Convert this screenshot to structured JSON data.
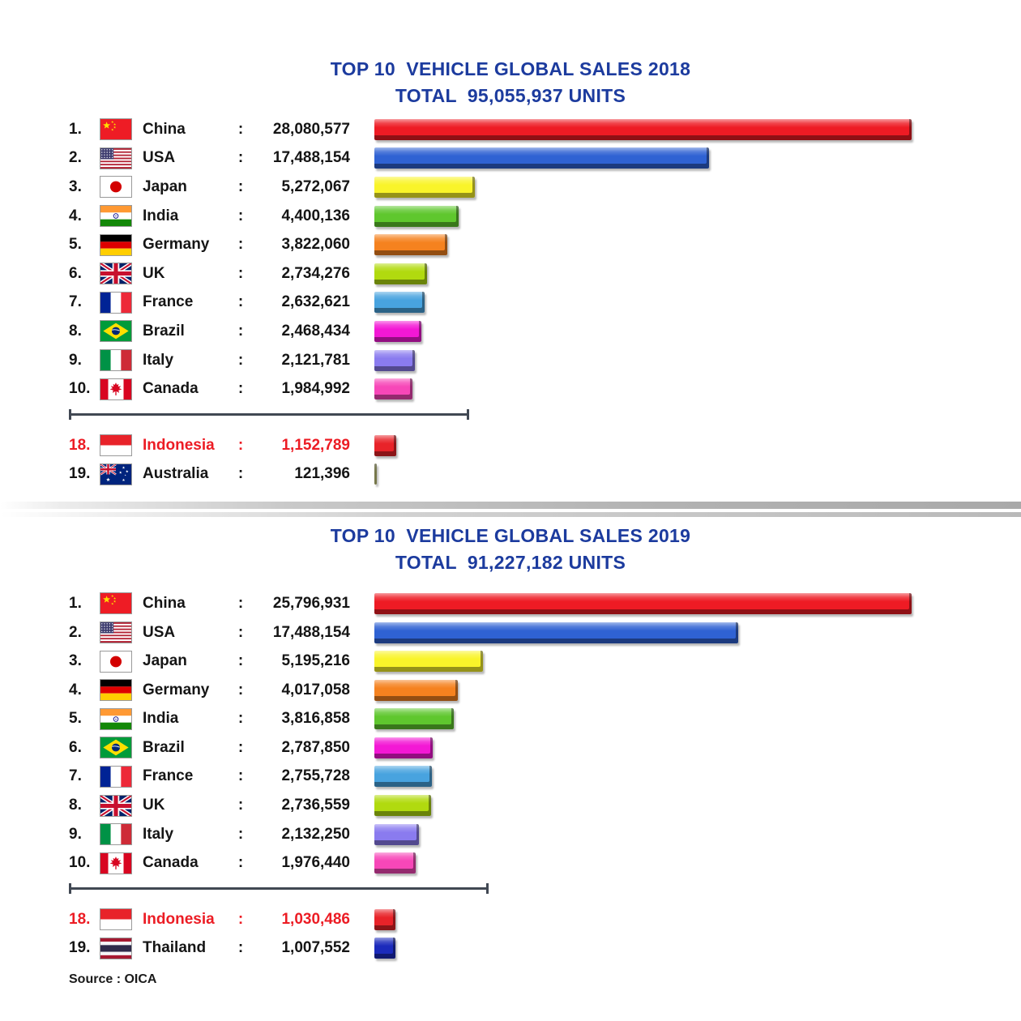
{
  "page": {
    "background": "#ffffff",
    "title_color": "#1C3B9E",
    "text_color": "#151515",
    "highlight_color": "#EC1C24",
    "source_label": "Source : OICA"
  },
  "chart_data": [
    {
      "type": "bar",
      "title": "TOP 10  VEHICLE GLOBAL SALES 2018",
      "subtitle": "TOTAL  95,055,937 UNITS",
      "total_units": 95055937,
      "year": 2018,
      "axis_max": 28080577,
      "legend_position": "none",
      "grid": false,
      "rows": [
        {
          "rank": "1.",
          "country": "China",
          "flag": "china",
          "value": 28080577,
          "value_label": "28,080,577",
          "bar_color": "#EE1B24",
          "highlight": false
        },
        {
          "rank": "2.",
          "country": "USA",
          "flag": "usa",
          "value": 17488154,
          "value_label": "17,488,154",
          "bar_color": "#2F62D3",
          "highlight": false
        },
        {
          "rank": "3.",
          "country": "Japan",
          "flag": "japan",
          "value": 5272067,
          "value_label": "5,272,067",
          "bar_color": "#F9F42A",
          "highlight": false
        },
        {
          "rank": "4.",
          "country": "India",
          "flag": "india",
          "value": 4400136,
          "value_label": "4,400,136",
          "bar_color": "#5FC72E",
          "highlight": false
        },
        {
          "rank": "5.",
          "country": "Germany",
          "flag": "germany",
          "value": 3822060,
          "value_label": "3,822,060",
          "bar_color": "#F5821F",
          "highlight": false
        },
        {
          "rank": "6.",
          "country": "UK",
          "flag": "uk",
          "value": 2734276,
          "value_label": "2,734,276",
          "bar_color": "#B1DA0F",
          "highlight": false
        },
        {
          "rank": "7.",
          "country": "France",
          "flag": "france",
          "value": 2632621,
          "value_label": "2,632,621",
          "bar_color": "#48A3DF",
          "highlight": false
        },
        {
          "rank": "8.",
          "country": "Brazil",
          "flag": "brazil",
          "value": 2468434,
          "value_label": "2,468,434",
          "bar_color": "#F318D5",
          "highlight": false
        },
        {
          "rank": "9.",
          "country": "Italy",
          "flag": "italy",
          "value": 2121781,
          "value_label": "2,121,781",
          "bar_color": "#8A7BEF",
          "highlight": false
        },
        {
          "rank": "10.",
          "country": "Canada",
          "flag": "canada",
          "value": 1984992,
          "value_label": "1,984,992",
          "bar_color": "#F747B8",
          "highlight": false
        }
      ],
      "extra_rows": [
        {
          "rank": "18.",
          "country": "Indonesia",
          "flag": "indonesia",
          "value": 1152789,
          "value_label": "1,152,789",
          "bar_color": "#E82329",
          "highlight": true
        },
        {
          "rank": "19.",
          "country": "Australia",
          "flag": "australia",
          "value": 121396,
          "value_label": "121,396",
          "bar_color": "#C5C77C",
          "highlight": false
        }
      ]
    },
    {
      "type": "bar",
      "title": "TOP 10  VEHICLE GLOBAL SALES 2019",
      "subtitle": "TOTAL  91,227,182 UNITS",
      "total_units": 91227182,
      "year": 2019,
      "axis_max": 25796931,
      "legend_position": "none",
      "grid": false,
      "rows": [
        {
          "rank": "1.",
          "country": "China",
          "flag": "china",
          "value": 25796931,
          "value_label": "25,796,931",
          "bar_color": "#EE1B24",
          "highlight": false
        },
        {
          "rank": "2.",
          "country": "USA",
          "flag": "usa",
          "value": 17488154,
          "value_label": "17,488,154",
          "bar_color": "#2F62D3",
          "highlight": false
        },
        {
          "rank": "3.",
          "country": "Japan",
          "flag": "japan",
          "value": 5195216,
          "value_label": "5,195,216",
          "bar_color": "#F9F42A",
          "highlight": false
        },
        {
          "rank": "4.",
          "country": "Germany",
          "flag": "germany",
          "value": 4017058,
          "value_label": "4,017,058",
          "bar_color": "#F5821F",
          "highlight": false
        },
        {
          "rank": "5.",
          "country": "India",
          "flag": "india",
          "value": 3816858,
          "value_label": "3,816,858",
          "bar_color": "#5FC72E",
          "highlight": false
        },
        {
          "rank": "6.",
          "country": "Brazil",
          "flag": "brazil",
          "value": 2787850,
          "value_label": "2,787,850",
          "bar_color": "#F318D5",
          "highlight": false
        },
        {
          "rank": "7.",
          "country": "France",
          "flag": "france",
          "value": 2755728,
          "value_label": "2,755,728",
          "bar_color": "#48A3DF",
          "highlight": false
        },
        {
          "rank": "8.",
          "country": "UK",
          "flag": "uk",
          "value": 2736559,
          "value_label": "2,736,559",
          "bar_color": "#B1DA0F",
          "highlight": false
        },
        {
          "rank": "9.",
          "country": "Italy",
          "flag": "italy",
          "value": 2132250,
          "value_label": "2,132,250",
          "bar_color": "#8A7BEF",
          "highlight": false
        },
        {
          "rank": "10.",
          "country": "Canada",
          "flag": "canada",
          "value": 1976440,
          "value_label": "1,976,440",
          "bar_color": "#F747B8",
          "highlight": false
        }
      ],
      "extra_rows": [
        {
          "rank": "18.",
          "country": "Indonesia",
          "flag": "indonesia",
          "value": 1030486,
          "value_label": "1,030,486",
          "bar_color": "#E82329",
          "highlight": true
        },
        {
          "rank": "19.",
          "country": "Thailand",
          "flag": "thailand",
          "value": 1007552,
          "value_label": "1,007,552",
          "bar_color": "#1B2ABB",
          "highlight": false
        }
      ]
    }
  ]
}
